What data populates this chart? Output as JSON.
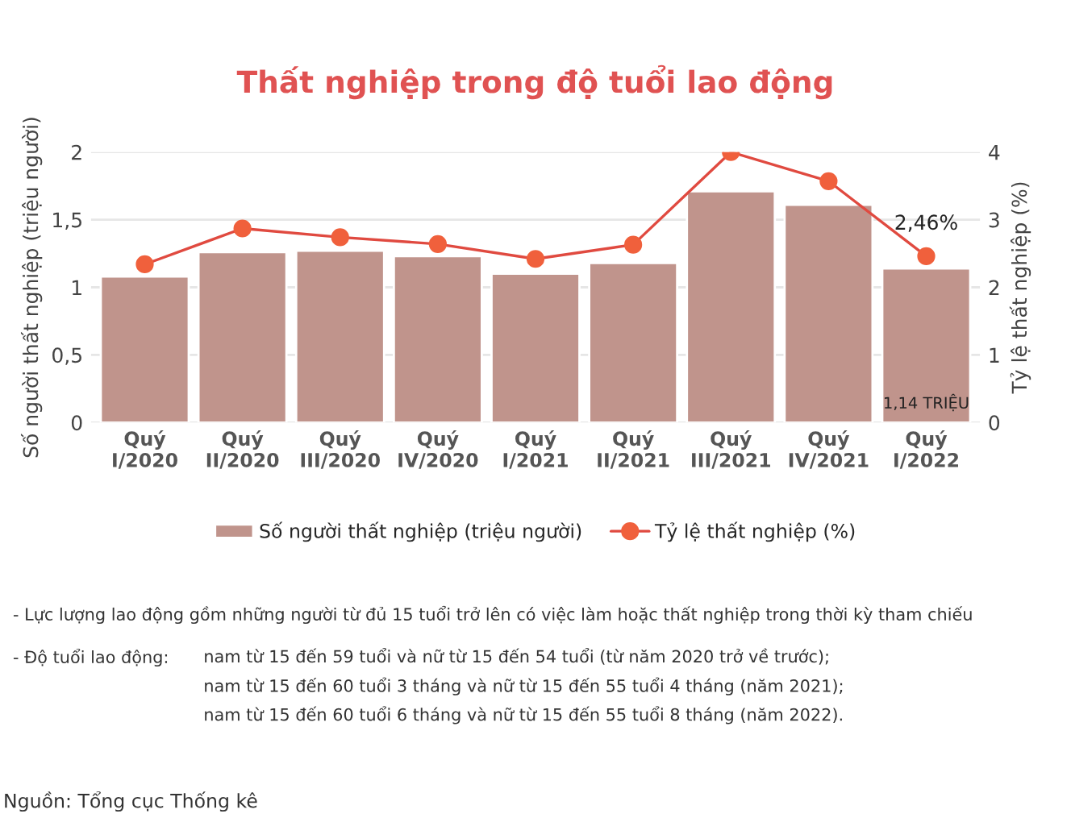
{
  "chart_data": {
    "type": "bar",
    "title": "Thất nghiệp trong độ tuổi lao động",
    "categories": [
      "Quý\nI/2020",
      "Quý\nII/2020",
      "Quý\nIII/2020",
      "Quý\nIV/2020",
      "Quý\nI/2021",
      "Quý\nII/2021",
      "Quý\nIII/2021",
      "Quý\nIV/2021",
      "Quý\nI/2022"
    ],
    "series": [
      {
        "name": "Số người thất nghiệp (triệu người)",
        "color": "#c0948c",
        "values": [
          1.08,
          1.26,
          1.27,
          1.23,
          1.1,
          1.18,
          1.71,
          1.61,
          1.14
        ],
        "value_labels": [
          null,
          null,
          null,
          null,
          null,
          null,
          null,
          null,
          "1,14 TRIỆU"
        ]
      },
      {
        "name": "Tỷ lệ thất nghiệp (%)",
        "type": "line",
        "axis": "y2",
        "color": "#e04a40",
        "marker": "circle",
        "values": [
          2.34,
          2.87,
          2.74,
          2.64,
          2.42,
          2.63,
          4.0,
          3.57,
          2.46
        ],
        "value_labels": [
          null,
          null,
          null,
          null,
          null,
          null,
          null,
          null,
          "2,46%"
        ]
      }
    ],
    "ylabel": "Số người thất nghiệp (triệu người)",
    "y2label": "Tỷ lệ thất nghiệp (%)",
    "ylim": [
      0,
      2
    ],
    "yticks": [
      0,
      {
        "value": 0.5,
        "label": "0,5"
      },
      1,
      {
        "value": 1.5,
        "label": "1,5"
      },
      2
    ],
    "y2lim": [
      0,
      4
    ],
    "y2ticks": [
      0,
      1,
      2,
      3,
      4
    ],
    "grid": "y",
    "legend": "bottom",
    "annotations": [
      "- Lực lượng lao động gồm những người từ đủ 15 tuổi trở lên có việc làm hoặc thất nghiệp trong thời kỳ tham chiếu",
      "- Độ tuổi lao động:",
      "nam từ 15 đến 59 tuổi và nữ từ 15 đến 54 tuổi (từ năm 2020 trở về trước);",
      "nam từ 15 đến 60 tuổi 3 tháng và nữ từ 15 đến 55 tuổi 4 tháng (năm 2021);",
      "nam từ 15 đến 60 tuổi 6 tháng và nữ từ 15 đến 55 tuổi 8 tháng (năm 2022).",
      "Nguồn: Tổng cục Thống kê"
    ]
  }
}
